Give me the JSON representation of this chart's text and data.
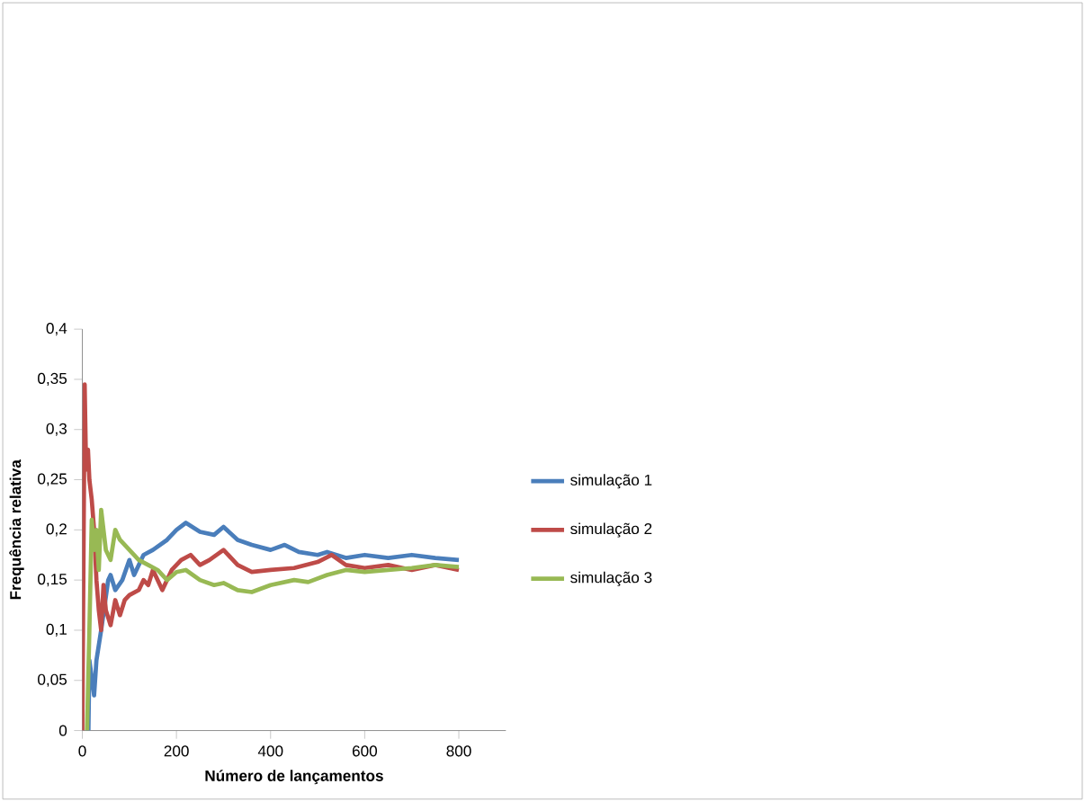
{
  "chart_data": {
    "type": "line",
    "xlabel": "Número de lançamentos",
    "ylabel": "Frequência relativa",
    "xlim": [
      0,
      900
    ],
    "xticks": [
      0,
      200,
      400,
      600,
      800
    ],
    "ylim": [
      0,
      0.4
    ],
    "yticks": [
      {
        "value": 0,
        "label": "0"
      },
      {
        "value": 0.05,
        "label": "0,05"
      },
      {
        "value": 0.1,
        "label": "0,1"
      },
      {
        "value": 0.15,
        "label": "0,15"
      },
      {
        "value": 0.2,
        "label": "0,2"
      },
      {
        "value": 0.25,
        "label": "0,25"
      },
      {
        "value": 0.3,
        "label": "0,3"
      },
      {
        "value": 0.35,
        "label": "0,35"
      },
      {
        "value": 0.4,
        "label": "0,4"
      }
    ],
    "legend": "right",
    "grid": false,
    "marker": "none",
    "series": [
      {
        "name": "simulação 1",
        "color": "#4a7ebb",
        "x": [
          13,
          15,
          25,
          30,
          40,
          55,
          60,
          70,
          85,
          100,
          110,
          130,
          150,
          180,
          200,
          220,
          250,
          280,
          300,
          330,
          360,
          400,
          430,
          460,
          500,
          520,
          560,
          600,
          650,
          700,
          750,
          800
        ],
        "values": [
          0,
          0.07,
          0.035,
          0.07,
          0.1,
          0.15,
          0.155,
          0.14,
          0.15,
          0.17,
          0.155,
          0.175,
          0.18,
          0.19,
          0.2,
          0.207,
          0.198,
          0.195,
          0.203,
          0.19,
          0.185,
          0.18,
          0.185,
          0.178,
          0.175,
          0.178,
          0.172,
          0.175,
          0.172,
          0.175,
          0.172,
          0.17
        ]
      },
      {
        "name": "simulação 2",
        "color": "#be4b48",
        "x": [
          0,
          5,
          8,
          12,
          15,
          20,
          25,
          30,
          35,
          40,
          45,
          50,
          60,
          70,
          80,
          90,
          100,
          120,
          130,
          140,
          150,
          170,
          190,
          210,
          230,
          250,
          270,
          300,
          330,
          360,
          400,
          450,
          500,
          530,
          560,
          600,
          650,
          700,
          750,
          800
        ],
        "values": [
          0,
          0.345,
          0.26,
          0.28,
          0.25,
          0.23,
          0.2,
          0.15,
          0.12,
          0.1,
          0.145,
          0.12,
          0.105,
          0.13,
          0.115,
          0.13,
          0.135,
          0.14,
          0.15,
          0.145,
          0.16,
          0.14,
          0.16,
          0.17,
          0.175,
          0.165,
          0.17,
          0.18,
          0.165,
          0.158,
          0.16,
          0.162,
          0.168,
          0.175,
          0.165,
          0.162,
          0.165,
          0.16,
          0.165,
          0.16
        ]
      },
      {
        "name": "simulação 3",
        "color": "#98b954",
        "x": [
          10,
          15,
          20,
          25,
          30,
          35,
          40,
          50,
          60,
          70,
          80,
          100,
          120,
          140,
          160,
          180,
          200,
          220,
          250,
          280,
          300,
          330,
          360,
          400,
          450,
          480,
          520,
          560,
          600,
          650,
          700,
          750,
          800
        ],
        "values": [
          0,
          0.1,
          0.21,
          0.18,
          0.2,
          0.16,
          0.22,
          0.18,
          0.17,
          0.2,
          0.19,
          0.18,
          0.17,
          0.165,
          0.16,
          0.15,
          0.158,
          0.16,
          0.15,
          0.145,
          0.147,
          0.14,
          0.138,
          0.145,
          0.15,
          0.148,
          0.155,
          0.16,
          0.158,
          0.16,
          0.162,
          0.165,
          0.163
        ]
      }
    ]
  }
}
